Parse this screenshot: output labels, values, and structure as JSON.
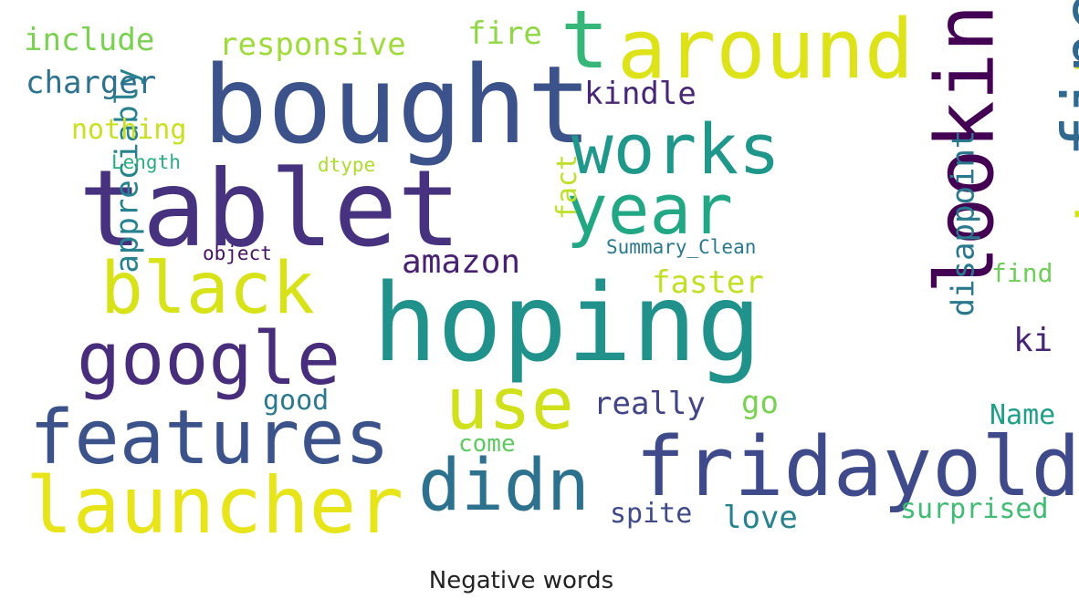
{
  "title": "Negative words",
  "words": [
    {
      "text": "bought",
      "color": "#3b528b",
      "vertical": false
    },
    {
      "text": "tablet",
      "color": "#46327e",
      "vertical": false
    },
    {
      "text": "hoping",
      "color": "#21918c",
      "vertical": false
    },
    {
      "text": "around",
      "color": "#dde318",
      "vertical": false
    },
    {
      "text": "fridayold",
      "color": "#3e4a89",
      "vertical": false
    },
    {
      "text": "features",
      "color": "#3b528b",
      "vertical": false
    },
    {
      "text": "launcher",
      "color": "#e7e419",
      "vertical": false
    },
    {
      "text": "google",
      "color": "#472d7b",
      "vertical": false
    },
    {
      "text": "black",
      "color": "#d8e219",
      "vertical": false
    },
    {
      "text": "works",
      "color": "#1f988b",
      "vertical": false
    },
    {
      "text": "year",
      "color": "#22a785",
      "vertical": false
    },
    {
      "text": "didn",
      "color": "#2c728e",
      "vertical": false
    },
    {
      "text": "use",
      "color": "#d0e11c",
      "vertical": false
    },
    {
      "text": "t",
      "color": "#35b779",
      "vertical": false
    },
    {
      "text": "looking",
      "color": "#440154",
      "vertical": true
    },
    {
      "text": "daughter",
      "color": "#d2e21b",
      "vertical": true
    },
    {
      "text": "fine",
      "color": "#31688e",
      "vertical": true
    },
    {
      "text": "disappoint",
      "color": "#2a788e",
      "vertical": true
    },
    {
      "text": "appreciably",
      "color": "#26828e",
      "vertical": true
    },
    {
      "text": "fact",
      "color": "#bddf26",
      "vertical": true
    },
    {
      "text": "amazon",
      "color": "#482173",
      "vertical": false
    },
    {
      "text": "kindle",
      "color": "#482677",
      "vertical": false
    },
    {
      "text": "responsive",
      "color": "#9fda3a",
      "vertical": false
    },
    {
      "text": "include",
      "color": "#7ad151",
      "vertical": false
    },
    {
      "text": "charger",
      "color": "#2c728e",
      "vertical": false
    },
    {
      "text": "fire",
      "color": "#8fd744",
      "vertical": false
    },
    {
      "text": "nothing",
      "color": "#c8e020",
      "vertical": false
    },
    {
      "text": "really",
      "color": "#414487",
      "vertical": false
    },
    {
      "text": "faster",
      "color": "#c2df23",
      "vertical": false
    },
    {
      "text": "go",
      "color": "#7ad151",
      "vertical": false
    },
    {
      "text": "good",
      "color": "#2a788e",
      "vertical": false
    },
    {
      "text": "come",
      "color": "#5ec962",
      "vertical": false
    },
    {
      "text": "spite",
      "color": "#3e4a89",
      "vertical": false
    },
    {
      "text": "love",
      "color": "#26828e",
      "vertical": false
    },
    {
      "text": "surprised",
      "color": "#3fbc73",
      "vertical": false
    },
    {
      "text": "Name",
      "color": "#1f9e89",
      "vertical": false
    },
    {
      "text": "ki",
      "color": "#482475",
      "vertical": false
    },
    {
      "text": "find",
      "color": "#6ece58",
      "vertical": false
    },
    {
      "text": "Summary_Clean",
      "color": "#2a788e",
      "vertical": false
    },
    {
      "text": "Length",
      "color": "#28ae80",
      "vertical": false
    },
    {
      "text": "dtype",
      "color": "#addc30",
      "vertical": false
    },
    {
      "text": "object",
      "color": "#471063",
      "vertical": false
    }
  ]
}
